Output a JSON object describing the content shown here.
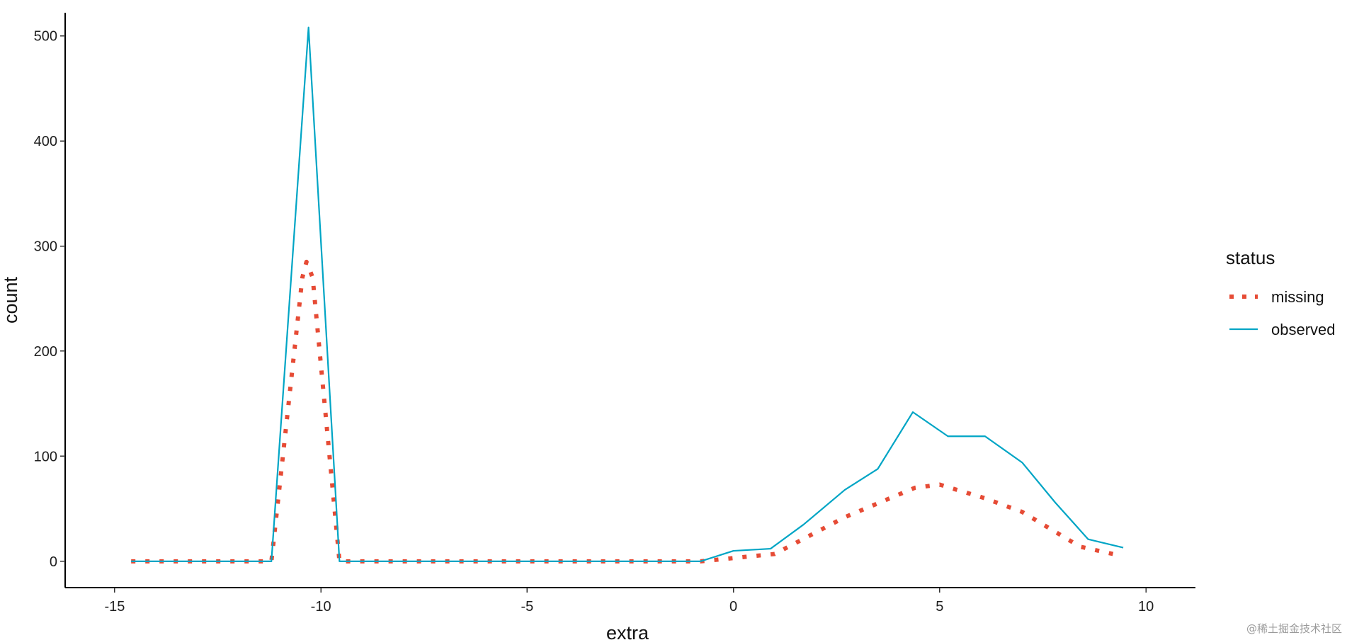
{
  "chart_data": {
    "type": "line",
    "title": "",
    "xlabel": "extra",
    "ylabel": "count",
    "xlim": [
      -16.2,
      11.2
    ],
    "ylim": [
      -25,
      522
    ],
    "x_ticks": [
      -15,
      -10,
      -5,
      0,
      5,
      10
    ],
    "x_tick_labels": [
      "-15",
      "-10",
      "-5",
      "0",
      "5",
      "10"
    ],
    "y_ticks": [
      0,
      100,
      200,
      300,
      400,
      500
    ],
    "y_tick_labels": [
      "0",
      "100",
      "200",
      "300",
      "400",
      "500"
    ],
    "grid": false,
    "legend": {
      "title": "status",
      "placement": "right"
    },
    "series": [
      {
        "name": "missing",
        "color": "#E64B35",
        "line_style": "dotted",
        "x": [
          -14.6,
          -11.2,
          -10.45,
          -10.35,
          -10.2,
          -9.55,
          -0.8,
          1.0,
          2.7,
          4.4,
          5.0,
          6.1,
          7.0,
          8.4,
          9.2
        ],
        "y": [
          0,
          0,
          270,
          285,
          270,
          0,
          0,
          7,
          42,
          70,
          73,
          60,
          47,
          14,
          7
        ]
      },
      {
        "name": "observed",
        "color": "#00A5C5",
        "line_style": "solid",
        "x": [
          -14.6,
          -11.2,
          -10.3,
          -9.55,
          -0.8,
          0.0,
          0.9,
          1.7,
          2.7,
          3.5,
          4.35,
          5.2,
          6.1,
          7.0,
          7.8,
          8.6,
          9.45
        ],
        "y": [
          0,
          0,
          508,
          0,
          0,
          10,
          12,
          35,
          68,
          88,
          142,
          119,
          119,
          94,
          56,
          21,
          13
        ]
      }
    ]
  },
  "watermark": {
    "text": "@稀土掘金技术社区"
  }
}
